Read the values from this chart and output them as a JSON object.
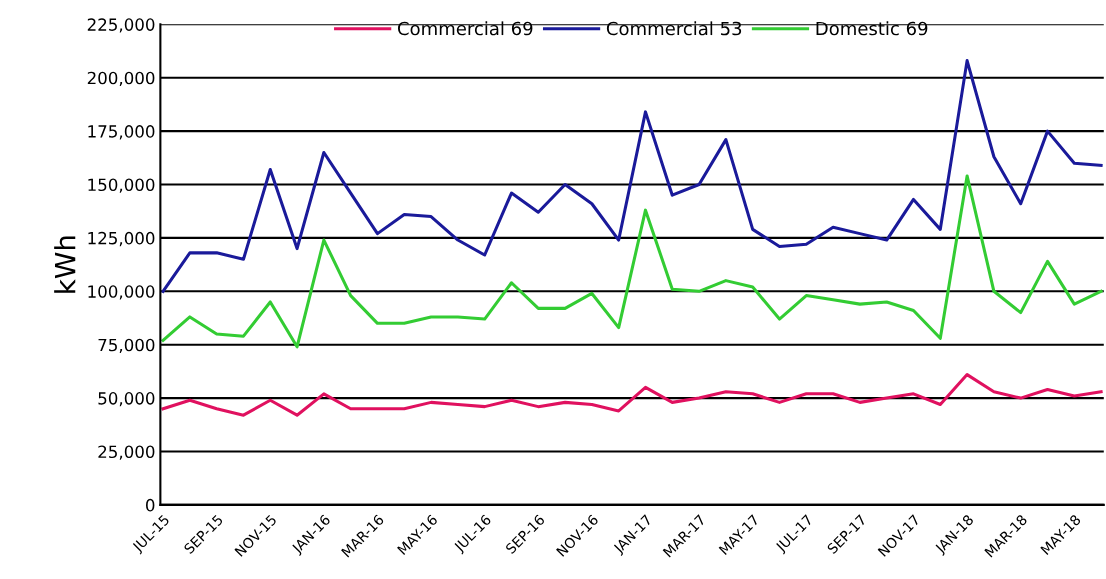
{
  "chart_data": {
    "type": "line",
    "ylabel": "kWh",
    "categories": [
      "JUL-15",
      null,
      "SEP-15",
      null,
      "NOV-15",
      null,
      "JAN-16",
      null,
      "MAR-16",
      null,
      "MAY-16",
      null,
      "JUL-16",
      null,
      "SEP-16",
      null,
      "NOV-16",
      null,
      "JAN-17",
      null,
      "MAR-17",
      null,
      "MAY-17",
      null,
      "JUL-17",
      null,
      "SEP-17",
      null,
      "NOV-17",
      null,
      "JAN-18",
      null,
      "MAR-18",
      null,
      "MAY-18",
      null
    ],
    "series": [
      {
        "name": "Commercial 69",
        "color": "#e0115f",
        "values": [
          45000,
          49000,
          45000,
          42000,
          49000,
          42000,
          52000,
          45000,
          45000,
          45000,
          48000,
          47000,
          46000,
          49000,
          46000,
          48000,
          47000,
          44000,
          55000,
          48000,
          50000,
          53000,
          52000,
          48000,
          52000,
          52000,
          48000,
          50000,
          52000,
          47000,
          61000,
          53000,
          50000,
          54000,
          51000,
          53000
        ]
      },
      {
        "name": "Commercial 53",
        "color": "#1a1a9a",
        "values": [
          100000,
          118000,
          118000,
          115000,
          157000,
          120000,
          165000,
          146000,
          127000,
          136000,
          135000,
          124000,
          117000,
          146000,
          137000,
          150000,
          141000,
          124000,
          184000,
          145000,
          150000,
          171000,
          129000,
          121000,
          122000,
          130000,
          127000,
          124000,
          143000,
          129000,
          208000,
          163000,
          141000,
          175000,
          160000,
          159000
        ]
      },
      {
        "name": "Domestic 69",
        "color": "#33cc33",
        "values": [
          77000,
          88000,
          80000,
          79000,
          95000,
          74000,
          124000,
          98000,
          85000,
          85000,
          88000,
          88000,
          87000,
          104000,
          92000,
          92000,
          99000,
          83000,
          138000,
          101000,
          100000,
          105000,
          102000,
          87000,
          98000,
          96000,
          94000,
          95000,
          91000,
          78000,
          154000,
          100000,
          90000,
          114000,
          94000,
          100000
        ]
      }
    ],
    "ylim": [
      0,
      225000
    ],
    "yticks": [
      {
        "value": 0,
        "label": "0"
      },
      {
        "value": 25000,
        "label": "25,000"
      },
      {
        "value": 50000,
        "label": "50,000"
      },
      {
        "value": 75000,
        "label": "75,000"
      },
      {
        "value": 100000,
        "label": "100,000"
      },
      {
        "value": 125000,
        "label": "125,000"
      },
      {
        "value": 150000,
        "label": "150,000"
      },
      {
        "value": 175000,
        "label": "175,000"
      },
      {
        "value": 200000,
        "label": "200,000"
      },
      {
        "value": 225000,
        "label": "225,000"
      }
    ],
    "grid": "y",
    "legend": "top",
    "marker": "none",
    "line_style": "solid"
  }
}
